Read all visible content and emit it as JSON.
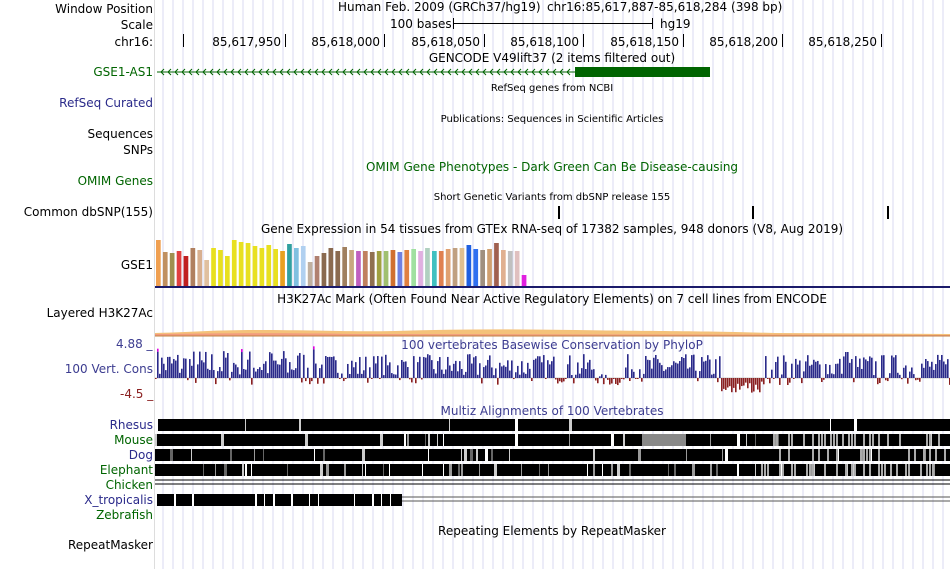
{
  "header": {
    "window_position_label": "Window Position",
    "scale_label": "Scale",
    "chrom_label": "chr16:",
    "assembly": "Human Feb. 2009 (GRCh37/hg19)",
    "position": "chr16:85,617,887-85,618,284 (398 bp)",
    "scale_text": "100 bases",
    "scale_db": "hg19",
    "ruler_ticks": [
      "85,617,950",
      "85,618,000",
      "85,618,050",
      "85,618,100",
      "85,618,150",
      "85,618,200",
      "85,618,250"
    ]
  },
  "tracks": {
    "gencode": {
      "title": "GENCODE V49lift37 (2 items filtered out)",
      "item": "GSE1-AS1",
      "color": "#006400"
    },
    "refseq": {
      "label": "RefSeq Curated",
      "title": "RefSeq genes from NCBI"
    },
    "publications": {
      "label": "Sequences",
      "title": "Publications: Sequences in Scientific Articles"
    },
    "snps": {
      "label": "SNPs",
      "title": "Short Genetic Variants from dbSNP release 155"
    },
    "omim": {
      "label": "OMIM Genes",
      "title": "OMIM Gene Phenotypes - Dark Green Can Be Disease-causing",
      "color": "#006400"
    },
    "common_snp": {
      "label": "Common dbSNP(155)"
    },
    "gtex": {
      "label": "GSE1",
      "title": "Gene Expression in 54 tissues from GTEx RNA-seq of 17382 samples, 948 donors (V8, Aug 2019)",
      "tissue_values": [
        0.95,
        0.7,
        0.68,
        0.72,
        0.63,
        0.8,
        0.75,
        0.55,
        0.8,
        0.75,
        0.63,
        0.95,
        0.92,
        0.9,
        0.83,
        0.8,
        0.85,
        0.78,
        0.72,
        0.88,
        0.8,
        0.83,
        0.5,
        0.62,
        0.68,
        0.8,
        0.73,
        0.82,
        0.75,
        0.72,
        0.73,
        0.7,
        0.72,
        0.72,
        0.75,
        0.7,
        0.75,
        0.78,
        0.73,
        0.8,
        0.72,
        0.73,
        0.78,
        0.8,
        0.8,
        0.85,
        0.78,
        0.75,
        0.78,
        0.9,
        0.75,
        0.72,
        0.72,
        0.22
      ],
      "tissue_colors": [
        "#f0a050",
        "#c09060",
        "#a09050",
        "#e04040",
        "#c02020",
        "#b08060",
        "#d8b090",
        "#e0c0a0",
        "#e8e020",
        "#e8e020",
        "#e8e020",
        "#e8e020",
        "#e8e020",
        "#e8e020",
        "#e8e020",
        "#e8e020",
        "#e8e020",
        "#e8e020",
        "#e8a020",
        "#30a0a0",
        "#80c0e0",
        "#b0d0f0",
        "#c0b0a0",
        "#b08070",
        "#8a6a50",
        "#8a6a50",
        "#8a6a50",
        "#a08060",
        "#c8a880",
        "#c060c0",
        "#c08060",
        "#907050",
        "#a0a040",
        "#a0c070",
        "#d07030",
        "#7080e0",
        "#e08040",
        "#a0e0a0",
        "#e0b0e0",
        "#b0d0c0",
        "#40c0c0",
        "#e08050",
        "#e0a070",
        "#c0a080",
        "#e0c090",
        "#2060e0",
        "#3070f0",
        "#a09080",
        "#d0a070",
        "#a06050",
        "#e0b090",
        "#c0c0c0",
        "#e0c0c0",
        "#e020e0"
      ]
    },
    "h3k27ac": {
      "label": "Layered H3K27Ac",
      "title": "H3K27Ac Mark (Often Found Near Active Regulatory Elements) on 7 cell lines from ENCODE"
    },
    "phylop": {
      "label": "100 Vert. Cons",
      "title": "100 vertebrates Basewise Conservation by PhyloP",
      "max": "4.88 _",
      "min": "-4.5 _"
    },
    "multiz": {
      "title": "Multiz Alignments of 100 Vertebrates",
      "species": [
        {
          "name": "Rhesus",
          "color": "#2a2a8a"
        },
        {
          "name": "Mouse",
          "color": "#006400"
        },
        {
          "name": "Dog",
          "color": "#2a2a8a"
        },
        {
          "name": "Elephant",
          "color": "#006400"
        },
        {
          "name": "Chicken",
          "color": "#006400"
        },
        {
          "name": "X_tropicalis",
          "color": "#2a2a8a"
        },
        {
          "name": "Zebrafish",
          "color": "#006400"
        }
      ]
    },
    "repeatmasker": {
      "label": "RepeatMasker",
      "title": "Repeating Elements by RepeatMasker"
    }
  }
}
